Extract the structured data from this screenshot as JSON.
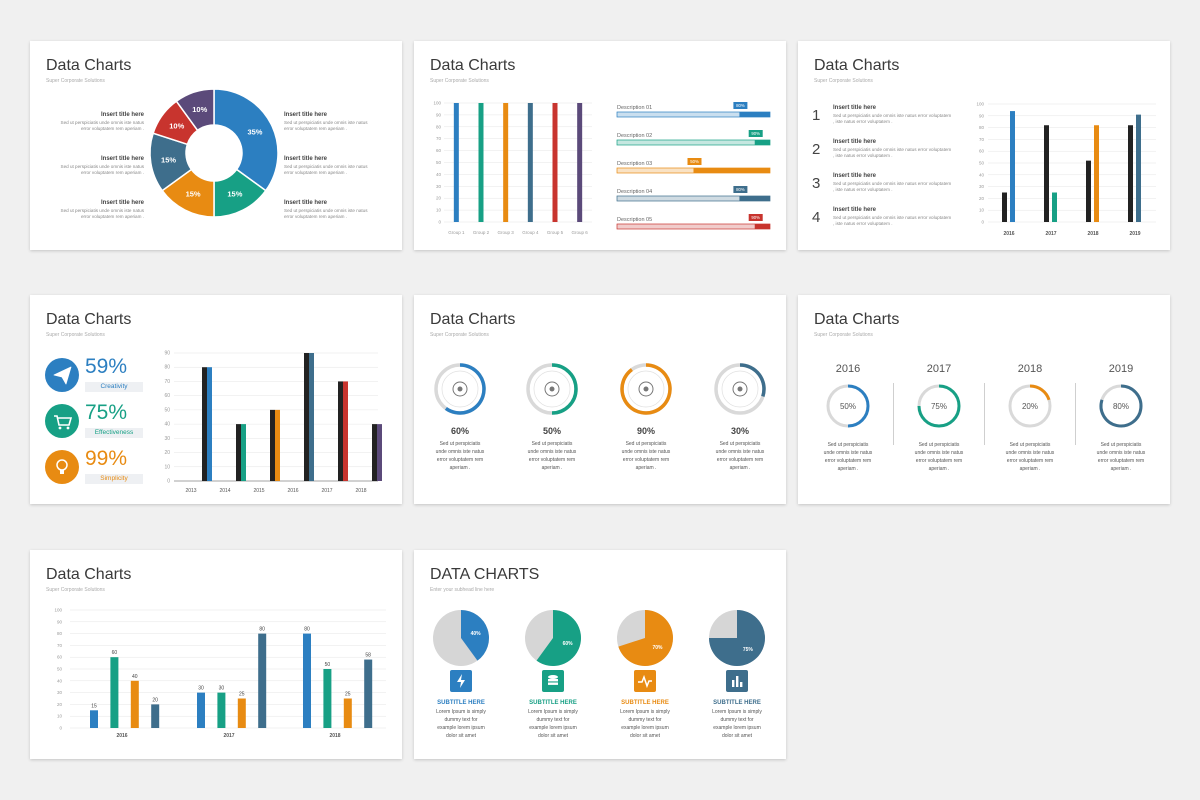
{
  "colors": {
    "blue": "#2c7fc1",
    "green": "#17a085",
    "orange": "#e88b12",
    "steel": "#3e6e8c",
    "red": "#c8342e",
    "purple": "#5b4a7a",
    "black": "#222222",
    "grid": "#e5e5e5",
    "track": "#d9d9d9"
  },
  "slides": [
    {
      "title": "Data Charts",
      "subtitle": "Super Corporate Solutions"
    },
    {
      "title": "Data Charts",
      "subtitle": "Super Corporate Solutions"
    },
    {
      "title": "Data Charts",
      "subtitle": "Super Corporate Solutions"
    },
    {
      "title": "Data Charts",
      "subtitle": "Super Corporate Solutions"
    },
    {
      "title": "Data Charts",
      "subtitle": "Super Corporate Solutions"
    },
    {
      "title": "Data Charts",
      "subtitle": "Super Corporate Solutions"
    },
    {
      "title": "Data Charts",
      "subtitle": "Super Corporate Solutions"
    },
    {
      "title": "DATA CHARTS",
      "subtitle": "Enter your subhead line here"
    }
  ],
  "text": {
    "insert_title": "Insert title here",
    "body_two": [
      "Sed ut perspiciatis unde omnis iste natus",
      "error voluptatem rem aperiam ."
    ],
    "body_three": [
      "Sed ut perspiciatis unde omnis iste natus error voluptatem",
      ", iste natus error voluptatem ."
    ],
    "body_four": [
      "Sed ut perspiciatis",
      "unde omnis iste natus",
      "error voluptatem rem",
      "aperiam ."
    ],
    "subtitle_here": "SUBTITLE HERE",
    "body_five": [
      "Lorem Ipsum is simply",
      "dummy text for",
      "example lorem ipsum",
      "dolor sit amet"
    ]
  },
  "chart_data": [
    {
      "type": "pie",
      "title": "Data Charts",
      "labels": [
        "35%",
        "15%",
        "15%",
        "15%",
        "10%",
        "10%"
      ],
      "values": [
        35,
        15,
        15,
        15,
        10,
        10
      ],
      "colors": [
        "#2c7fc1",
        "#17a085",
        "#e88b12",
        "#3e6e8c",
        "#c8342e",
        "#5b4a7a"
      ]
    },
    {
      "type": "bar",
      "title": "Data Charts",
      "categories": [
        "Group 1",
        "Group 2",
        "Group 3",
        "Group 4",
        "Group 5",
        "Group 6"
      ],
      "values": [
        100,
        100,
        100,
        100,
        100,
        100
      ],
      "ylim": [
        0,
        100
      ],
      "yticks": [
        0,
        10,
        20,
        30,
        40,
        50,
        60,
        70,
        80,
        90,
        100
      ],
      "colors": [
        "#2c7fc1",
        "#17a085",
        "#e88b12",
        "#3e6e8c",
        "#c8342e",
        "#5b4a7a"
      ],
      "progress": [
        {
          "label": "Description 01",
          "value": 80,
          "text": "80%",
          "color": "#2c7fc1"
        },
        {
          "label": "Description 02",
          "value": 90,
          "text": "90%",
          "color": "#17a085"
        },
        {
          "label": "Description 03",
          "value": 50,
          "text": "50%",
          "color": "#e88b12"
        },
        {
          "label": "Description 04",
          "value": 80,
          "text": "80%",
          "color": "#3e6e8c"
        },
        {
          "label": "Description 05",
          "value": 90,
          "text": "90%",
          "color": "#c8342e"
        }
      ]
    },
    {
      "type": "bar",
      "title": "Data Charts",
      "categories": [
        "2016",
        "2017",
        "2018",
        "2019"
      ],
      "ylim": [
        0,
        100
      ],
      "yticks": [
        0,
        10,
        20,
        30,
        40,
        50,
        60,
        70,
        80,
        90,
        100
      ],
      "series": [
        {
          "values": [
            25,
            82,
            52,
            82
          ],
          "color": "#222222"
        },
        {
          "values": [
            94,
            25,
            82,
            91
          ],
          "color": "#x"
        }
      ],
      "second_colors": [
        "#2c7fc1",
        "#17a085",
        "#e88b12",
        "#3e6e8c"
      ],
      "items": [
        "1",
        "2",
        "3",
        "4"
      ]
    },
    {
      "type": "bar",
      "title": "Data Charts",
      "categories": [
        "2013",
        "2014",
        "2015",
        "2016",
        "2017",
        "2018"
      ],
      "ylim": [
        0,
        90
      ],
      "yticks": [
        0,
        10,
        20,
        30,
        40,
        50,
        60,
        70,
        80,
        90
      ],
      "series": [
        {
          "values": [
            80,
            40,
            50,
            90,
            70,
            40
          ],
          "color": "#222222"
        },
        {
          "values": [
            80,
            40,
            50,
            90,
            70,
            40
          ],
          "color": "#x"
        }
      ],
      "second_colors": [
        "#2c7fc1",
        "#17a085",
        "#e88b12",
        "#3e6e8c",
        "#c8342e",
        "#5b4a7a"
      ],
      "kpis": [
        {
          "value": "59%",
          "label": "Creativity",
          "color": "#2c7fc1"
        },
        {
          "value": "75%",
          "label": "Effectiveness",
          "color": "#17a085"
        },
        {
          "value": "99%",
          "label": "Simplicity",
          "color": "#e88b12"
        }
      ]
    },
    {
      "type": "pie",
      "title": "Data Charts",
      "labels": [
        "60%",
        "50%",
        "90%",
        "30%"
      ],
      "values": [
        60,
        50,
        90,
        30
      ],
      "colors": [
        "#2c7fc1",
        "#17a085",
        "#e88b12",
        "#3e6e8c"
      ]
    },
    {
      "type": "pie",
      "title": "Data Charts",
      "categories": [
        "2016",
        "2017",
        "2018",
        "2019"
      ],
      "labels": [
        "50%",
        "75%",
        "20%",
        "80%"
      ],
      "values": [
        50,
        75,
        20,
        80
      ],
      "colors": [
        "#2c7fc1",
        "#17a085",
        "#e88b12",
        "#3e6e8c"
      ]
    },
    {
      "type": "bar",
      "title": "Data Charts",
      "categories": [
        "2016",
        "2017",
        "2018"
      ],
      "ylim": [
        0,
        100
      ],
      "yticks": [
        0,
        10,
        20,
        30,
        40,
        50,
        60,
        70,
        80,
        90,
        100
      ],
      "series": [
        {
          "values": [
            15,
            30,
            80
          ],
          "color": "#2c7fc1"
        },
        {
          "values": [
            60,
            30,
            50
          ],
          "color": "#17a085"
        },
        {
          "values": [
            40,
            25,
            25
          ],
          "color": "#e88b12"
        },
        {
          "values": [
            20,
            80,
            58
          ],
          "color": "#3e6e8c"
        }
      ]
    },
    {
      "type": "pie",
      "title": "DATA CHARTS",
      "labels": [
        "40%",
        "60%",
        "70%",
        "75%"
      ],
      "values": [
        40,
        60,
        70,
        75
      ],
      "colors": [
        "#2c7fc1",
        "#17a085",
        "#e88b12",
        "#3e6e8c"
      ],
      "icons": [
        "lightning-icon",
        "database-icon",
        "pulse-icon",
        "bar-chart-icon"
      ]
    }
  ]
}
